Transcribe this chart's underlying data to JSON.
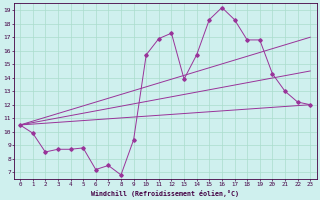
{
  "xlabel": "Windchill (Refroidissement éolien,°C)",
  "bg_color": "#cff0ee",
  "line_color": "#993399",
  "grid_color": "#aaddcc",
  "x_ticks": [
    0,
    1,
    2,
    3,
    4,
    5,
    6,
    7,
    8,
    9,
    10,
    11,
    12,
    13,
    14,
    15,
    16,
    17,
    18,
    19,
    20,
    21,
    22,
    23
  ],
  "y_ticks": [
    7,
    8,
    9,
    10,
    11,
    12,
    13,
    14,
    15,
    16,
    17,
    18,
    19
  ],
  "xlim": [
    -0.5,
    23.5
  ],
  "ylim": [
    6.5,
    19.5
  ],
  "line1_x": [
    0,
    1,
    2,
    3,
    4,
    5,
    6,
    7,
    8,
    9,
    10,
    11,
    12,
    13,
    14,
    15,
    16,
    17,
    18,
    19,
    20,
    21,
    22,
    23
  ],
  "line1_y": [
    10.5,
    9.9,
    8.5,
    8.7,
    8.7,
    8.8,
    7.2,
    7.5,
    6.8,
    9.4,
    15.7,
    16.9,
    17.3,
    13.9,
    15.7,
    18.3,
    19.2,
    18.3,
    16.8,
    16.8,
    14.3,
    13.0,
    12.2,
    12.0
  ],
  "line2_x": [
    0,
    23
  ],
  "line2_y": [
    10.5,
    17.0
  ],
  "line3_x": [
    0,
    23
  ],
  "line3_y": [
    10.5,
    14.5
  ],
  "line4_x": [
    0,
    23
  ],
  "line4_y": [
    10.5,
    12.0
  ]
}
